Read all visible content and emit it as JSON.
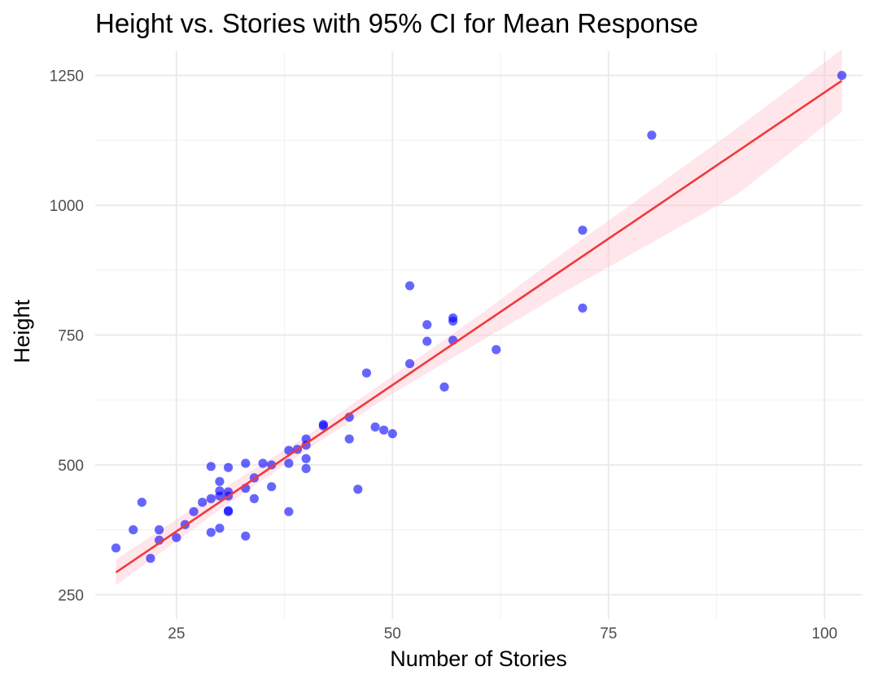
{
  "chart_data": {
    "type": "scatter",
    "title": "Height vs. Stories with 95% CI for Mean Response",
    "xlabel": "Number of Stories",
    "ylabel": "Height",
    "xlim": [
      15.6,
      104.4
    ],
    "ylim": [
      203.5,
      1296.5
    ],
    "x_ticks": [
      25,
      50,
      75,
      100
    ],
    "y_ticks": [
      250,
      500,
      750,
      1000,
      1250
    ],
    "x_tick_labels": [
      "25",
      "50",
      "75",
      "100"
    ],
    "y_tick_labels": [
      "250",
      "500",
      "750",
      "1000",
      "1250"
    ],
    "grid": true,
    "legend": "none",
    "point_color": "#0000ff",
    "line_color": "#f0393d",
    "band_color": "#ffc0cb",
    "points": [
      {
        "x": 18,
        "y": 340
      },
      {
        "x": 20,
        "y": 375
      },
      {
        "x": 21,
        "y": 428
      },
      {
        "x": 22,
        "y": 320
      },
      {
        "x": 23,
        "y": 355
      },
      {
        "x": 23,
        "y": 375
      },
      {
        "x": 25,
        "y": 360
      },
      {
        "x": 26,
        "y": 385
      },
      {
        "x": 27,
        "y": 410
      },
      {
        "x": 28,
        "y": 428
      },
      {
        "x": 29,
        "y": 435
      },
      {
        "x": 29,
        "y": 370
      },
      {
        "x": 29,
        "y": 497
      },
      {
        "x": 30,
        "y": 378
      },
      {
        "x": 30,
        "y": 440
      },
      {
        "x": 30,
        "y": 450
      },
      {
        "x": 30,
        "y": 468
      },
      {
        "x": 31,
        "y": 410
      },
      {
        "x": 31,
        "y": 412
      },
      {
        "x": 31,
        "y": 440
      },
      {
        "x": 31,
        "y": 448
      },
      {
        "x": 31,
        "y": 495
      },
      {
        "x": 33,
        "y": 363
      },
      {
        "x": 33,
        "y": 455
      },
      {
        "x": 33,
        "y": 503
      },
      {
        "x": 34,
        "y": 435
      },
      {
        "x": 34,
        "y": 475
      },
      {
        "x": 35,
        "y": 503
      },
      {
        "x": 36,
        "y": 458
      },
      {
        "x": 36,
        "y": 500
      },
      {
        "x": 38,
        "y": 410
      },
      {
        "x": 38,
        "y": 503
      },
      {
        "x": 38,
        "y": 528
      },
      {
        "x": 39,
        "y": 530
      },
      {
        "x": 40,
        "y": 493
      },
      {
        "x": 40,
        "y": 512
      },
      {
        "x": 40,
        "y": 538
      },
      {
        "x": 40,
        "y": 550
      },
      {
        "x": 42,
        "y": 575
      },
      {
        "x": 42,
        "y": 578
      },
      {
        "x": 45,
        "y": 550
      },
      {
        "x": 45,
        "y": 592
      },
      {
        "x": 46,
        "y": 453
      },
      {
        "x": 47,
        "y": 677
      },
      {
        "x": 48,
        "y": 573
      },
      {
        "x": 49,
        "y": 567
      },
      {
        "x": 50,
        "y": 560
      },
      {
        "x": 52,
        "y": 695
      },
      {
        "x": 52,
        "y": 845
      },
      {
        "x": 54,
        "y": 738
      },
      {
        "x": 54,
        "y": 770
      },
      {
        "x": 56,
        "y": 650
      },
      {
        "x": 57,
        "y": 740
      },
      {
        "x": 57,
        "y": 777
      },
      {
        "x": 57,
        "y": 783
      },
      {
        "x": 62,
        "y": 722
      },
      {
        "x": 72,
        "y": 802
      },
      {
        "x": 72,
        "y": 952
      },
      {
        "x": 80,
        "y": 1135
      },
      {
        "x": 102,
        "y": 1250
      }
    ],
    "fit_line": {
      "x": [
        18,
        102
      ],
      "y": [
        293,
        1240
      ]
    },
    "ci_band": {
      "x": [
        18,
        30,
        40,
        50,
        60,
        70,
        80,
        90,
        102
      ],
      "lower": [
        268,
        414,
        528,
        637,
        736,
        834,
        928,
        1022,
        1180
      ],
      "upper": [
        318,
        450,
        555,
        671,
        788,
        911,
        1030,
        1150,
        1300
      ]
    }
  }
}
